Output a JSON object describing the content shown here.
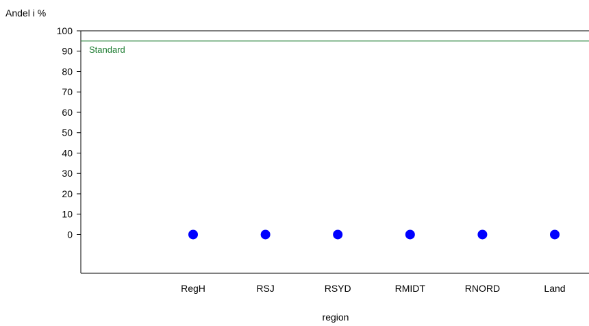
{
  "chart_data": {
    "type": "scatter",
    "ylabel": "Andel i %",
    "xlabel": "region",
    "categories": [
      "RegH",
      "RSJ",
      "RSYD",
      "RMIDT",
      "RNORD",
      "Land"
    ],
    "series": [
      {
        "values": [
          0,
          0,
          0,
          0,
          0,
          0
        ]
      }
    ],
    "y_ticks": [
      0,
      10,
      20,
      30,
      40,
      50,
      60,
      70,
      80,
      90,
      100
    ],
    "ylim": [
      -19,
      100
    ],
    "reference_line": {
      "label": "Standard",
      "value": 95
    },
    "grid": false,
    "legend": "none",
    "colors": {
      "marker": "#0000ff",
      "reference": "#1a7a2e",
      "axis": "#000000"
    }
  }
}
